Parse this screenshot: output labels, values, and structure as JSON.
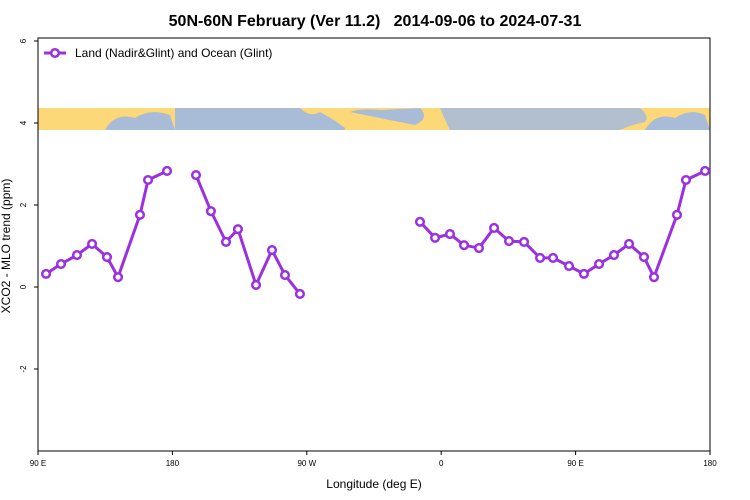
{
  "chart_data": {
    "type": "line",
    "title": "50N-60N February (Ver 11.2)   2014-09-06 to 2024-07-31",
    "xlabel": "Longitude (deg E)",
    "ylabel": "XCO2 - MLO trend (ppm)",
    "xlim": [
      90,
      540
    ],
    "ylim": [
      -4,
      6
    ],
    "xticks": [
      {
        "value": 90,
        "label": "90 E"
      },
      {
        "value": 180,
        "label": "180"
      },
      {
        "value": 270,
        "label": "90 W"
      },
      {
        "value": 360,
        "label": "0"
      },
      {
        "value": 450,
        "label": "90 E"
      },
      {
        "value": 540,
        "label": "180"
      }
    ],
    "yticks": [
      -2,
      0,
      2,
      4,
      6
    ],
    "legend": "upper left",
    "x": [
      95.4,
      105.4,
      116.1,
      126.2,
      136.2,
      143.6,
      158.3,
      163.7,
      176.4,
      null,
      195.8,
      205.8,
      215.9,
      223.9,
      236.0,
      246.7,
      255.4,
      265.4,
      null,
      345.8,
      355.9,
      365.9,
      375.3,
      385.3,
      395.4,
      405.4,
      415.5,
      426.2,
      434.9,
      445.6,
      455.6,
      465.7,
      475.7,
      485.8,
      495.8,
      502.5,
      517.9,
      523.9,
      536.7
    ],
    "series": [
      {
        "name": "Land (Nadir&Glint) and Ocean (Glint)",
        "color": "#9b30e0",
        "values": [
          0.32,
          0.56,
          0.78,
          1.05,
          0.73,
          0.24,
          1.76,
          2.61,
          2.83,
          null,
          2.73,
          1.85,
          1.1,
          1.41,
          0.05,
          0.9,
          0.29,
          -0.17,
          null,
          1.59,
          1.2,
          1.29,
          1.02,
          0.95,
          1.44,
          1.12,
          1.1,
          0.71,
          0.71,
          0.51,
          0.32,
          0.56,
          0.78,
          1.05,
          0.73,
          0.24,
          1.76,
          2.61,
          2.83
        ]
      }
    ]
  }
}
